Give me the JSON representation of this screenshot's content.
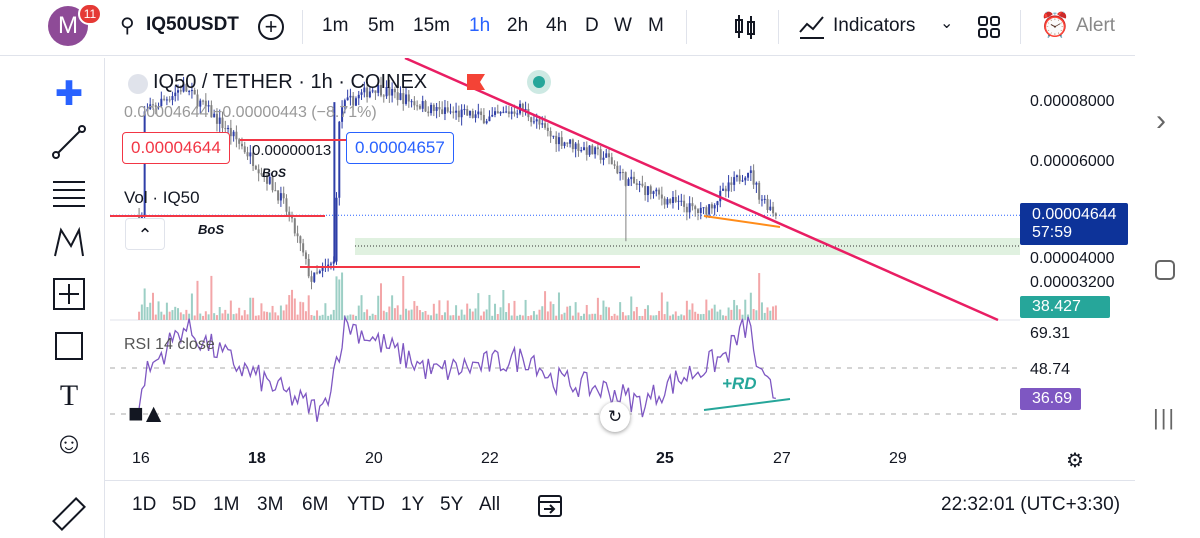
{
  "header": {
    "avatar_letter": "M",
    "notifications": "11",
    "symbol": "IQ50USDT",
    "timeframes": [
      "1m",
      "5m",
      "15m",
      "1h",
      "2h",
      "4h",
      "D",
      "W",
      "M"
    ],
    "active_timeframe": "1h",
    "indicators_label": "Indicators",
    "alert_label": "Alert"
  },
  "legend": {
    "title": "IQ50 / TETHER · 1h · COINEX",
    "ohlc": "0.00004644 −0.00000443 (−8.71%)",
    "sell_price": "0.00004644",
    "spread": "0.00000013",
    "buy_price": "0.00004657",
    "volume_label": "Vol · IQ50",
    "rsi_label": "RSI 14 close"
  },
  "annotations": {
    "bos1": "BoS",
    "bos2": "BoS",
    "rd": "+RD"
  },
  "price_axis": {
    "ticks": [
      "0.00008000",
      "0.00006000",
      "0.00004000",
      "0.00003200"
    ],
    "last_price": "0.00004644",
    "countdown": "57:59",
    "volume": "38.427 M",
    "rsi_ticks": [
      "69.31",
      "48.74"
    ],
    "rsi_value": "36.69"
  },
  "time_axis": [
    "16",
    "18",
    "20",
    "22",
    "25",
    "27",
    "29"
  ],
  "bottom": {
    "ranges": [
      "1D",
      "5D",
      "1M",
      "3M",
      "6M",
      "YTD",
      "1Y",
      "5Y",
      "All"
    ],
    "clock": "22:32:01 (UTC+3:30)"
  },
  "colors": {
    "accent": "#2962ff",
    "up": "#2f3fa8",
    "down": "#808080",
    "trend": "#e91e63",
    "rsi": "#7e57c2",
    "vol": "#26a69a"
  },
  "chart_data": {
    "type": "candlestick",
    "scale": "log",
    "unit": "1e-5 USDT",
    "price_keypoints": [
      [
        16,
        7.5
      ],
      [
        16.7,
        8.6
      ],
      [
        17.7,
        6.5
      ],
      [
        18.4,
        5.0
      ],
      [
        18.9,
        3.4
      ],
      [
        19.3,
        3.7
      ],
      [
        19.4,
        7.8
      ],
      [
        20,
        8.6
      ],
      [
        21,
        7.7
      ],
      [
        22,
        7.4
      ],
      [
        22.5,
        7.8
      ],
      [
        23,
        6.8
      ],
      [
        24,
        6.1
      ],
      [
        24.3,
        5.5
      ],
      [
        25,
        5.0
      ],
      [
        25.6,
        4.7
      ],
      [
        26,
        5.2
      ],
      [
        26.4,
        5.8
      ],
      [
        26.6,
        5.1
      ],
      [
        26.9,
        4.64
      ]
    ],
    "rsi_keypoints": [
      [
        16,
        45
      ],
      [
        16.7,
        68
      ],
      [
        17.7,
        50
      ],
      [
        18.5,
        38
      ],
      [
        19.1,
        30
      ],
      [
        19.5,
        70
      ],
      [
        20,
        62
      ],
      [
        21,
        48
      ],
      [
        22,
        52
      ],
      [
        22.7,
        55
      ],
      [
        23,
        45
      ],
      [
        24,
        40
      ],
      [
        24.6,
        34
      ],
      [
        25,
        42
      ],
      [
        25.6,
        50
      ],
      [
        26,
        55
      ],
      [
        26.4,
        70
      ],
      [
        26.6,
        45
      ],
      [
        26.9,
        36.7
      ]
    ]
  }
}
